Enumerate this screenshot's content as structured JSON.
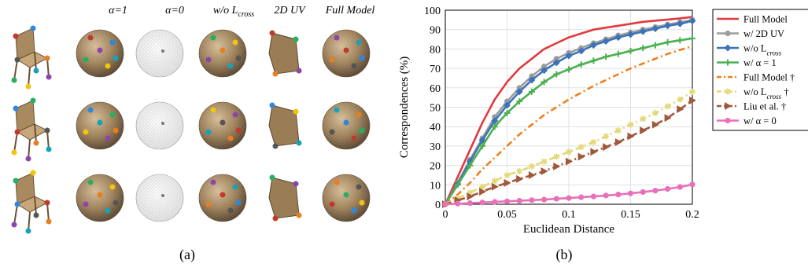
{
  "panel_a": {
    "headers": [
      "α=1",
      "α=0",
      "w/o L",
      "2D UV",
      "Full Model"
    ],
    "header_sub": "cross",
    "caption": "(a)"
  },
  "panel_b": {
    "caption": "(b)"
  },
  "chart_data": {
    "type": "line",
    "xlabel": "Euclidean Distance",
    "ylabel": "Correspondences (%)",
    "xlim": [
      0,
      0.2
    ],
    "ylim": [
      0,
      100
    ],
    "xticks": [
      "0",
      "0.05",
      "0.1",
      "0.15",
      "0.2"
    ],
    "yticks": [
      "0",
      "10",
      "20",
      "30",
      "40",
      "50",
      "60",
      "70",
      "80",
      "90",
      "100"
    ],
    "grid": true,
    "legend_position": "outside-right",
    "x": [
      0,
      0.01,
      0.02,
      0.03,
      0.04,
      0.05,
      0.06,
      0.07,
      0.08,
      0.09,
      0.1,
      0.11,
      0.12,
      0.13,
      0.14,
      0.15,
      0.16,
      0.17,
      0.18,
      0.19,
      0.2
    ],
    "series": [
      {
        "name": "Full Model",
        "color": "#e03a3e",
        "dash": "",
        "marker": "none",
        "values": [
          0,
          14,
          28,
          42,
          54,
          63,
          70,
          75,
          80,
          83,
          86,
          88,
          90,
          91,
          92,
          93,
          94,
          94.6,
          95.2,
          95.8,
          96.5
        ]
      },
      {
        "name": "w/ 2D UV",
        "color": "#9c9c9c",
        "dash": "",
        "marker": "circle",
        "values": [
          0,
          11,
          23,
          34,
          45,
          53,
          60,
          66,
          71,
          75,
          78,
          80.5,
          83,
          85,
          87,
          88.5,
          90,
          91.3,
          92.6,
          93.8,
          95
        ]
      },
      {
        "name": "w/o L_cross",
        "color": "#3b73b9",
        "dash": "",
        "marker": "diamond",
        "values": [
          0,
          10.5,
          22,
          33,
          43,
          51,
          58,
          64,
          69,
          73,
          76.5,
          79,
          82,
          84,
          86,
          87.5,
          89,
          90.5,
          92,
          93,
          94.5
        ]
      },
      {
        "name": "w/ α = 1",
        "color": "#4caf50",
        "dash": "",
        "marker": "plus",
        "values": [
          0,
          10,
          20,
          30,
          40,
          47,
          53,
          58,
          63,
          67,
          69.5,
          72,
          74,
          76,
          77.5,
          79,
          80.5,
          82,
          83.5,
          84.5,
          85.5
        ]
      },
      {
        "name": "Full Model †",
        "color": "#f07f1c",
        "dash": "8,4,2,4",
        "marker": "none",
        "values": [
          0,
          5,
          11,
          18,
          24,
          30,
          36,
          41,
          46,
          50,
          54,
          57.5,
          61,
          64,
          67,
          70,
          72.5,
          75,
          77.5,
          79.5,
          81.5
        ]
      },
      {
        "name": "w/o L_cross †",
        "color": "#e3d97a",
        "dash": "8,4,2,4",
        "marker": "star",
        "values": [
          0,
          3,
          6,
          9,
          12,
          15,
          17,
          19.5,
          22,
          24.5,
          27,
          29.5,
          32,
          35,
          38,
          41,
          44,
          47,
          50.5,
          54,
          58
        ]
      },
      {
        "name": "Liu et al. †",
        "color": "#a0593a",
        "dash": "8,4,2,4",
        "marker": "triangle",
        "values": [
          0,
          2,
          4,
          6.5,
          9,
          11,
          13,
          15,
          17,
          19.5,
          22,
          24.5,
          27,
          29.5,
          32,
          35,
          38,
          41,
          44.5,
          49,
          53.5
        ]
      },
      {
        "name": "w/ α = 0",
        "color": "#e870b8",
        "dash": "",
        "marker": "circle",
        "values": [
          0,
          0.3,
          0.6,
          0.9,
          1.2,
          1.5,
          1.8,
          2.1,
          2.4,
          2.8,
          3.2,
          3.6,
          4.0,
          4.5,
          5.0,
          5.6,
          6.3,
          7.0,
          7.9,
          8.9,
          10.2
        ]
      }
    ]
  }
}
